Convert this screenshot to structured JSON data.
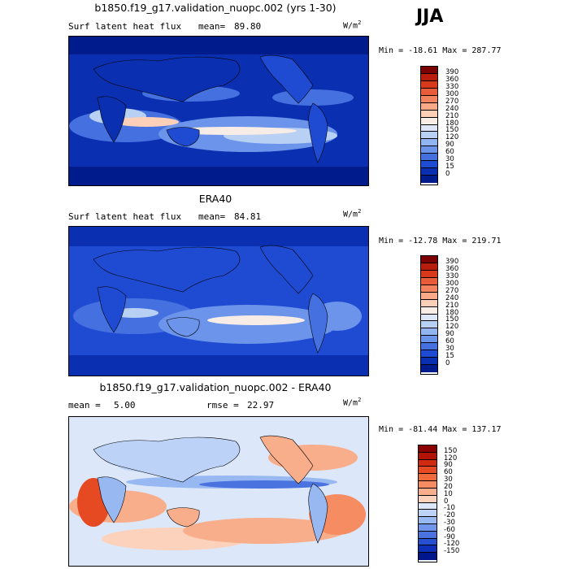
{
  "season": "JJA",
  "panels": [
    {
      "id": "model",
      "title": "b1850.f19_g17.validation_nuopc.002 (yrs 1-30)",
      "left_text": "Surf latent heat flux",
      "mean_label": "mean=",
      "mean_value": "89.80",
      "units_base": "W/m",
      "units_exp": "2",
      "minmax": "Min = -18.61 Max = 287.77",
      "colorbar": {
        "labels": [
          "390",
          "360",
          "330",
          "300",
          "270",
          "240",
          "210",
          "180",
          "150",
          "120",
          "90",
          "60",
          "30",
          "15",
          "0"
        ],
        "colors": [
          "#7a0403",
          "#b71c0c",
          "#d8391a",
          "#e95c3a",
          "#f3825f",
          "#f9a888",
          "#fcd0b8",
          "#f7ece6",
          "#dce6f8",
          "#b9d0f5",
          "#92b4f0",
          "#6b94ea",
          "#4470e0",
          "#1f4bd3",
          "#0a2fb0",
          "#001c8c"
        ]
      }
    },
    {
      "id": "obs",
      "title": "ERA40",
      "left_text": "Surf latent heat flux",
      "mean_label": "mean=",
      "mean_value": "84.81",
      "units_base": "W/m",
      "units_exp": "2",
      "minmax": "Min = -12.78 Max = 219.71",
      "colorbar": {
        "labels": [
          "390",
          "360",
          "330",
          "300",
          "270",
          "240",
          "210",
          "180",
          "150",
          "120",
          "90",
          "60",
          "30",
          "15",
          "0"
        ],
        "colors": [
          "#7a0403",
          "#b71c0c",
          "#d8391a",
          "#e95c3a",
          "#f3825f",
          "#f9a888",
          "#fcd0b8",
          "#f7ece6",
          "#dce6f8",
          "#b9d0f5",
          "#92b4f0",
          "#6b94ea",
          "#4470e0",
          "#1f4bd3",
          "#0a2fb0",
          "#001c8c"
        ]
      }
    },
    {
      "id": "diff",
      "title": "b1850.f19_g17.validation_nuopc.002 - ERA40",
      "left_text": "mean =",
      "mean_label": "",
      "mean_value": "5.00",
      "rmse_label": "rmse =",
      "rmse_value": "22.97",
      "units_base": "W/m",
      "units_exp": "2",
      "minmax": "Min = -81.44 Max = 137.17",
      "colorbar": {
        "labels": [
          "150",
          "120",
          "90",
          "60",
          "30",
          "20",
          "10",
          "0",
          "-10",
          "-20",
          "-30",
          "-60",
          "-90",
          "-120",
          "-150"
        ],
        "colors": [
          "#8b0000",
          "#b31307",
          "#d02b10",
          "#e64a22",
          "#f06a3c",
          "#f58c62",
          "#f9ae8b",
          "#fcd2bd",
          "#dce8fa",
          "#bcd2f7",
          "#98b8f2",
          "#6f96ea",
          "#4a73e0",
          "#274fd2",
          "#0e30b8",
          "#00168c"
        ]
      }
    }
  ]
}
